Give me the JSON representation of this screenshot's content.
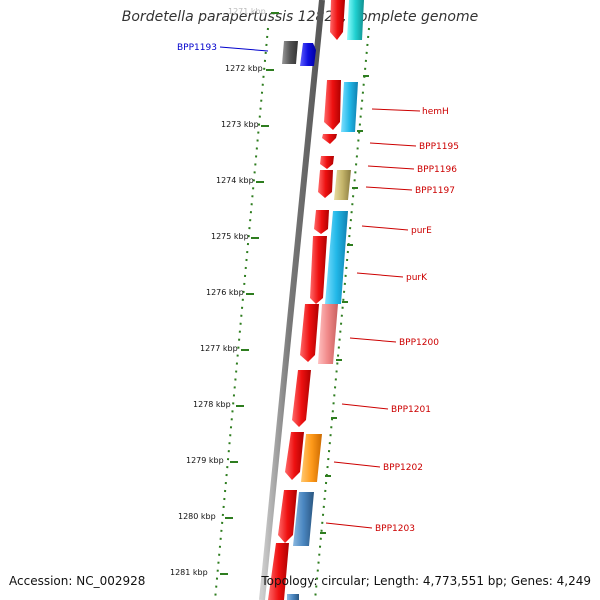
{
  "title": "Bordetella parapertussis 12822, complete genome",
  "footer": {
    "accession": "Accession: NC_002928",
    "stats": "Topology: circular; Length: 4,773,551 bp; Genes: 4,249"
  },
  "tick_labels": [
    "1271 kbp",
    "1272 kbp",
    "1273 kbp",
    "1274 kbp",
    "1275 kbp",
    "1276 kbp",
    "1277 kbp",
    "1278 kbp",
    "1279 kbp",
    "1280 kbp",
    "1281 kbp"
  ],
  "gene_labels": [
    "BPP1193",
    "hemH",
    "BPP1195",
    "BPP1196",
    "BPP1197",
    "purE",
    "purK",
    "BPP1200",
    "BPP1201",
    "BPP1202",
    "BPP1203"
  ],
  "colors": {
    "backbone": "#7a7a7a",
    "ticks": "#2e7d1f",
    "label_red": "#cc0000",
    "label_blue": "#0000cc",
    "cds": "#ee1111",
    "cds_light_blue": "#22b8e8",
    "cds_pink": "#f08888",
    "cds_khaki": "#c4b46a",
    "cds_orange": "#ff9a1a",
    "cds_steel": "#4a86c0",
    "cds_grey": "#555555",
    "cds_blue": "#1010e0",
    "cds_cyan": "#20d0d0"
  }
}
